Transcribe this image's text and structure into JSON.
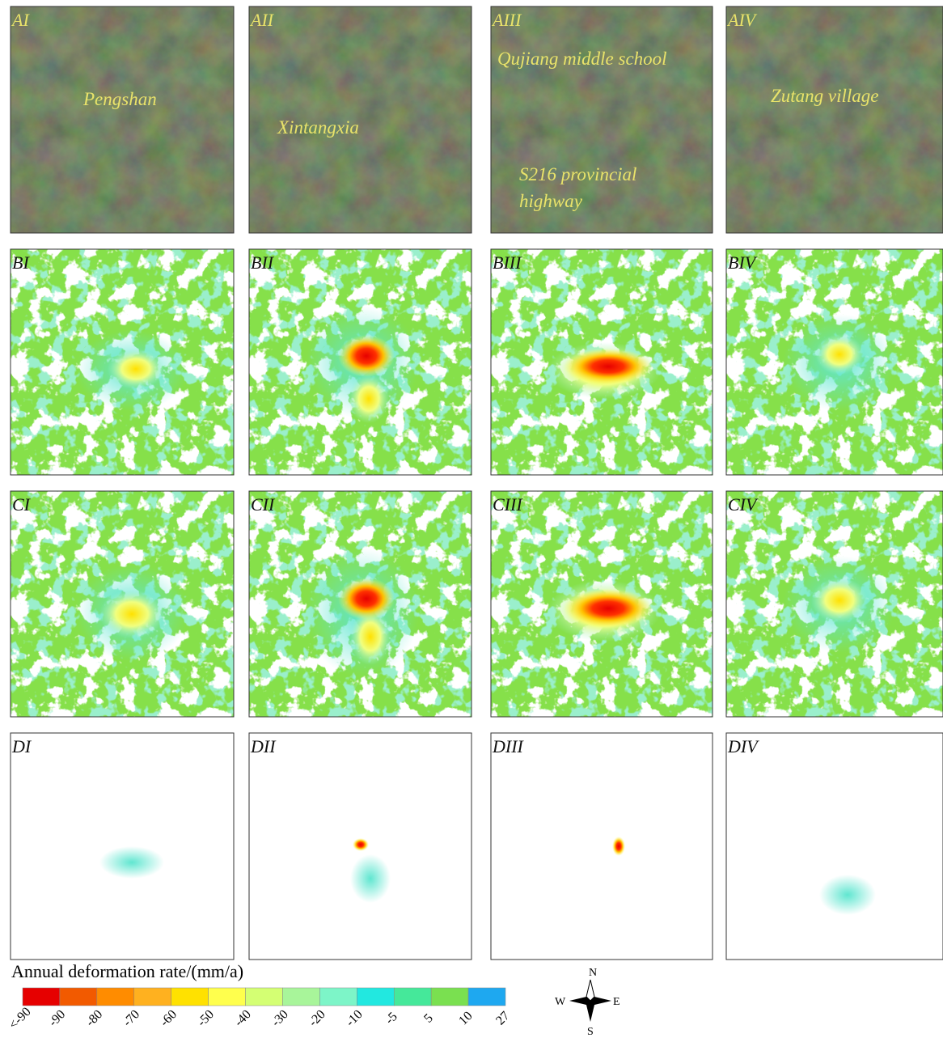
{
  "panels": [
    [
      "AI",
      "AII",
      "AIII",
      "AIV"
    ],
    [
      "BI",
      "BII",
      "BIII",
      "BIV"
    ],
    [
      "CI",
      "CII",
      "CIII",
      "CIV"
    ],
    [
      "DI",
      "DII",
      "DIII",
      "DIV"
    ]
  ],
  "annotations": [
    {
      "panel": "AI",
      "lines": [
        "Pengshan"
      ]
    },
    {
      "panel": "AII",
      "lines": [
        "Xintangxia"
      ]
    },
    {
      "panel": "AIII",
      "lines": [
        "Qujiang middle school"
      ]
    },
    {
      "panel": "AIII",
      "lines": [
        "S216 provincial",
        "highway"
      ]
    },
    {
      "panel": "AIV",
      "lines": [
        "Zutang village"
      ]
    }
  ],
  "legend": {
    "title": "Annual deformation rate/(mm/a)",
    "colors": [
      "#e60000",
      "#f25a00",
      "#ff8c00",
      "#ffb11f",
      "#ffe100",
      "#ffff4d",
      "#d4ff73",
      "#a8f59a",
      "#7df5c8",
      "#22e8e0",
      "#45e89a",
      "#7ae050",
      "#b8ef3a",
      "#1ea8f0"
    ],
    "labels": [
      "<-90",
      "-90",
      "-80",
      "-70",
      "-60",
      "-50",
      "-40",
      "-30",
      "-20",
      "-10",
      "-5",
      "5",
      "10",
      "27"
    ]
  },
  "compass": {
    "north": "N",
    "east": "E",
    "south": "S",
    "west": "W"
  }
}
